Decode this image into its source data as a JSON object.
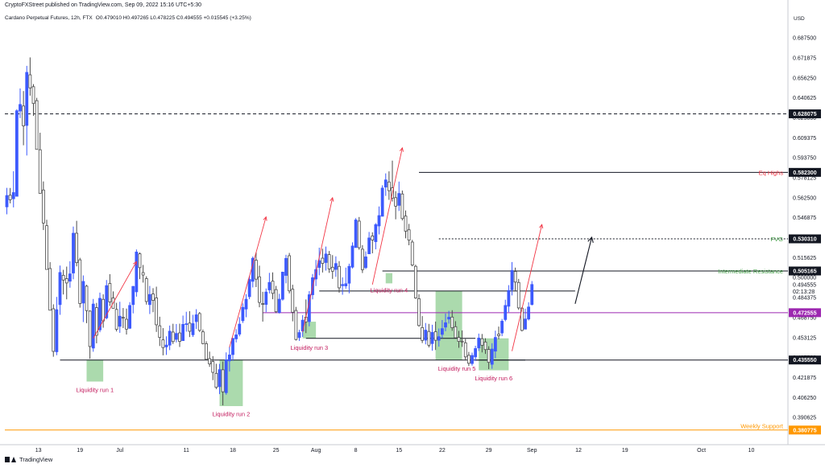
{
  "header": {
    "publisher": "CryptoFXStreet published on TradingView.com, Sep 09, 2022 15:16 UTC+5:30",
    "symbol": "Cardano Perpetual Futures, 12h, FTX",
    "ohlc": "O0.479010 H0.497265 L0.478225 C0.494555 +0.015545 (+3.25%)",
    "currency": "USD"
  },
  "footer": {
    "brand": "TradingView"
  },
  "colors": {
    "up": "#3d5afe",
    "down": "#4b4b4b",
    "box": "#66bb6a",
    "arrow": "#f23645",
    "purple": "#9c27b0",
    "orange": "#ff9800",
    "fvg_text": "#43a047",
    "eq_text": "#f23645"
  },
  "chart_data": {
    "type": "candlestick",
    "title": "Cardano Perpetual Futures, 12h, FTX",
    "ylim": [
      0.3775,
      0.6995
    ],
    "y_ticks": [
      "0.687500",
      "0.671875",
      "0.656250",
      "0.640625",
      "0.625000",
      "0.609375",
      "0.593750",
      "0.578125",
      "0.562500",
      "0.546875",
      "0.531250",
      "0.515625",
      "0.500000",
      "0.484375",
      "0.468750",
      "0.453125",
      "0.437500",
      "0.421875",
      "0.406250",
      "0.390625"
    ],
    "x_ticks": [
      {
        "label": "13",
        "i": 9.5
      },
      {
        "label": "19",
        "i": 22
      },
      {
        "label": "Jul",
        "i": 34
      },
      {
        "label": "11",
        "i": 54
      },
      {
        "label": "18",
        "i": 68
      },
      {
        "label": "25",
        "i": 81
      },
      {
        "label": "Aug",
        "i": 93
      },
      {
        "label": "8",
        "i": 105
      },
      {
        "label": "15",
        "i": 118
      },
      {
        "label": "22",
        "i": 131
      },
      {
        "label": "29",
        "i": 145
      },
      {
        "label": "Sep",
        "i": 158
      },
      {
        "label": "12",
        "i": 172
      },
      {
        "label": "19",
        "i": 186
      },
      {
        "label": "Oct",
        "i": 209
      },
      {
        "label": "10",
        "i": 224
      }
    ],
    "price_badges": [
      {
        "label": "0.628075",
        "value": 0.628075,
        "color": "#131722"
      },
      {
        "label": "0.582300",
        "value": 0.5823,
        "color": "#131722"
      },
      {
        "label": "0.530310",
        "value": 0.53031,
        "color": "#131722"
      },
      {
        "label": "0.505165",
        "value": 0.505165,
        "color": "#131722"
      },
      {
        "label": "0.472555",
        "value": 0.472555,
        "color": "#9c27b0"
      },
      {
        "label": "0.435550",
        "value": 0.43555,
        "color": "#131722"
      },
      {
        "label": "0.380775",
        "value": 0.380775,
        "color": "#ff9800"
      }
    ],
    "current_price": {
      "label": "0.494555",
      "countdown": "02:13:28",
      "value": 0.494555
    },
    "horizontal_lines": [
      {
        "value": 0.628075,
        "from": 0,
        "to": 1.0,
        "style": "dashed",
        "color": "#131722"
      },
      {
        "value": 0.5823,
        "from": 124,
        "to": 1.0,
        "style": "solid",
        "color": "#131722"
      },
      {
        "value": 0.53031,
        "from": 130,
        "to": 1.0,
        "style": "dotted",
        "color": "#131722"
      },
      {
        "value": 0.505165,
        "from": 113,
        "to": 1.0,
        "style": "solid",
        "color": "#131722"
      },
      {
        "value": 0.472555,
        "from": 77,
        "to": 1.0,
        "style": "solid",
        "color": "#9c27b0"
      },
      {
        "value": 0.43555,
        "from": 16,
        "to": 1.0,
        "style": "solid",
        "color": "#131722"
      },
      {
        "value": 0.380775,
        "from": 0,
        "to": 1.0,
        "style": "solid",
        "color": "#ff9800"
      },
      {
        "value": 0.4895,
        "from": 94,
        "to": 171,
        "style": "solid",
        "color": "#131722"
      },
      {
        "value": 0.4525,
        "from": 90,
        "to": 141,
        "style": "solid",
        "color": "#131722"
      },
      {
        "value": 0.4355,
        "from": 141,
        "to": 156,
        "style": "solid",
        "color": "#131722"
      }
    ],
    "line_labels": [
      {
        "text": "Eq Highs",
        "value": 0.5823,
        "color": "#f23645"
      },
      {
        "text": "FVG",
        "value": 0.53031,
        "color": "#43a047"
      },
      {
        "text": "Intermediate Resistance",
        "value": 0.505165,
        "color": "#43a047"
      },
      {
        "text": "Weekly Support",
        "value": 0.380775,
        "color": "#ff9800"
      }
    ],
    "liquidity_zones": [
      {
        "label": "Liquidity run 1",
        "i0": 24,
        "i1": 29,
        "top": 0.4358,
        "bottom": 0.4187,
        "label_value": 0.4125
      },
      {
        "label": "Liquidity run 2",
        "i0": 64,
        "i1": 71,
        "top": 0.4358,
        "bottom": 0.3995,
        "label_value": 0.3935
      },
      {
        "label": "Liquidity run 3",
        "i0": 89,
        "i1": 93,
        "top": 0.4655,
        "bottom": 0.4525,
        "label_value": 0.4455
      },
      {
        "label": "Liquidity run 4",
        "i0": 114,
        "i1": 116,
        "top": 0.5035,
        "bottom": 0.4955,
        "label_value": 0.4905
      },
      {
        "label": "Liquidity run 5",
        "i0": 129,
        "i1": 137,
        "top": 0.4895,
        "bottom": 0.4355,
        "label_value": 0.4292
      },
      {
        "label": "Liquidity run 6",
        "i0": 142,
        "i1": 151,
        "top": 0.4525,
        "bottom": 0.4275,
        "label_value": 0.4215
      }
    ],
    "run_arrows": [
      {
        "i0": 26,
        "v0": 0.4525,
        "i1": 39,
        "v1": 0.5125
      },
      {
        "i0": 67,
        "v0": 0.4455,
        "i1": 78,
        "v1": 0.5475
      },
      {
        "i0": 89,
        "v0": 0.4575,
        "i1": 98,
        "v1": 0.5625
      },
      {
        "i0": 110,
        "v0": 0.4945,
        "i1": 119,
        "v1": 0.6015
      },
      {
        "i0": 152,
        "v0": 0.4425,
        "i1": 161,
        "v1": 0.5415
      }
    ],
    "projection_arrow": {
      "i0": 171,
      "v0": 0.4795,
      "i1": 176,
      "v1": 0.5315
    },
    "candles": [
      [
        0.5553,
        0.5702,
        0.5495,
        0.5642
      ],
      [
        0.5644,
        0.5701,
        0.5581,
        0.5609
      ],
      [
        0.5617,
        0.5832,
        0.5549,
        0.5665
      ],
      [
        0.5636,
        0.6317,
        0.5641,
        0.6305
      ],
      [
        0.6303,
        0.6479,
        0.6247,
        0.6354
      ],
      [
        0.6342,
        0.6459,
        0.6035,
        0.6187
      ],
      [
        0.619,
        0.6656,
        0.5955,
        0.6605
      ],
      [
        0.6586,
        0.6722,
        0.6423,
        0.6484
      ],
      [
        0.6493,
        0.6513,
        0.6265,
        0.6362
      ],
      [
        0.6384,
        0.6406,
        0.6004,
        0.6003
      ],
      [
        0.6,
        0.6133,
        0.5659,
        0.5659
      ],
      [
        0.5685,
        0.5752,
        0.5372,
        0.5427
      ],
      [
        0.5406,
        0.5453,
        0.5064,
        0.5064
      ],
      [
        0.5071,
        0.5121,
        0.4745,
        0.4745
      ],
      [
        0.4756,
        0.4791,
        0.4381,
        0.4423
      ],
      [
        0.442,
        0.4849,
        0.4393,
        0.4749
      ],
      [
        0.4789,
        0.5094,
        0.4709,
        0.504
      ],
      [
        0.5018,
        0.5061,
        0.4868,
        0.4981
      ],
      [
        0.4992,
        0.5086,
        0.483,
        0.4958
      ],
      [
        0.4972,
        0.5128,
        0.4921,
        0.5029
      ],
      [
        0.5036,
        0.5399,
        0.4987,
        0.5347
      ],
      [
        0.5347,
        0.5444,
        0.5088,
        0.5117
      ],
      [
        0.5139,
        0.5155,
        0.4765,
        0.4797
      ],
      [
        0.4801,
        0.5017,
        0.4652,
        0.497
      ],
      [
        0.4933,
        0.4943,
        0.4644,
        0.4742
      ],
      [
        0.4738,
        0.4744,
        0.4365,
        0.4461
      ],
      [
        0.4449,
        0.4833,
        0.442,
        0.4793
      ],
      [
        0.4765,
        0.4802,
        0.4486,
        0.4549
      ],
      [
        0.4591,
        0.4883,
        0.4573,
        0.4838
      ],
      [
        0.483,
        0.4869,
        0.4608,
        0.4661
      ],
      [
        0.4685,
        0.4981,
        0.4674,
        0.4937
      ],
      [
        0.4954,
        0.5027,
        0.4778,
        0.481
      ],
      [
        0.4841,
        0.4892,
        0.4759,
        0.476
      ],
      [
        0.4751,
        0.4803,
        0.4579,
        0.4596
      ],
      [
        0.4619,
        0.4811,
        0.4568,
        0.4698
      ],
      [
        0.4689,
        0.4762,
        0.4605,
        0.4687
      ],
      [
        0.4674,
        0.4758,
        0.4555,
        0.4597
      ],
      [
        0.4604,
        0.4808,
        0.4598,
        0.4782
      ],
      [
        0.4789,
        0.4935,
        0.472,
        0.4931
      ],
      [
        0.4889,
        0.522,
        0.4851,
        0.52
      ],
      [
        0.5186,
        0.5196,
        0.4988,
        0.5078
      ],
      [
        0.5039,
        0.5099,
        0.4961,
        0.502
      ],
      [
        0.4992,
        0.501,
        0.4789,
        0.4813
      ],
      [
        0.4789,
        0.4935,
        0.4715,
        0.4868
      ],
      [
        0.4872,
        0.4917,
        0.4729,
        0.4822
      ],
      [
        0.4841,
        0.4929,
        0.4575,
        0.4631
      ],
      [
        0.4623,
        0.4694,
        0.4465,
        0.4532
      ],
      [
        0.4513,
        0.4605,
        0.4392,
        0.4453
      ],
      [
        0.4458,
        0.4541,
        0.4395,
        0.4472
      ],
      [
        0.4472,
        0.4625,
        0.4433,
        0.4581
      ],
      [
        0.4574,
        0.4639,
        0.4481,
        0.45
      ],
      [
        0.4517,
        0.4637,
        0.4493,
        0.4563
      ],
      [
        0.4567,
        0.464,
        0.4457,
        0.4501
      ],
      [
        0.4507,
        0.4703,
        0.4507,
        0.4634
      ],
      [
        0.4637,
        0.4733,
        0.4577,
        0.4639
      ],
      [
        0.4644,
        0.4737,
        0.4535,
        0.458
      ],
      [
        0.4553,
        0.4709,
        0.4536,
        0.464
      ],
      [
        0.4656,
        0.4753,
        0.4598,
        0.4709
      ],
      [
        0.4719,
        0.4731,
        0.4575,
        0.4587
      ],
      [
        0.4576,
        0.4594,
        0.4478,
        0.4484
      ],
      [
        0.4483,
        0.4502,
        0.4356,
        0.4361
      ],
      [
        0.4366,
        0.4421,
        0.4302,
        0.4325
      ],
      [
        0.4344,
        0.4386,
        0.4198,
        0.4259
      ],
      [
        0.4251,
        0.4326,
        0.4128,
        0.4142
      ],
      [
        0.4147,
        0.4325,
        0.4089,
        0.428
      ],
      [
        0.4279,
        0.4344,
        0.4001,
        0.4107
      ],
      [
        0.41,
        0.4415,
        0.4084,
        0.4357
      ],
      [
        0.4349,
        0.4461,
        0.4266,
        0.4395
      ],
      [
        0.4398,
        0.4529,
        0.4349,
        0.4524
      ],
      [
        0.4521,
        0.4597,
        0.4493,
        0.4552
      ],
      [
        0.4558,
        0.4691,
        0.4541,
        0.4636
      ],
      [
        0.4663,
        0.4798,
        0.4645,
        0.4767
      ],
      [
        0.4754,
        0.4871,
        0.469,
        0.4831
      ],
      [
        0.4851,
        0.5014,
        0.4831,
        0.4985
      ],
      [
        0.4971,
        0.5165,
        0.4923,
        0.5151
      ],
      [
        0.5136,
        0.5197,
        0.4926,
        0.4988
      ],
      [
        0.5006,
        0.5093,
        0.4768,
        0.4806
      ],
      [
        0.4797,
        0.4889,
        0.4656,
        0.4793
      ],
      [
        0.479,
        0.4915,
        0.473,
        0.4887
      ],
      [
        0.4904,
        0.5037,
        0.4876,
        0.4962
      ],
      [
        0.4972,
        0.5041,
        0.4831,
        0.4877
      ],
      [
        0.4906,
        0.4935,
        0.4723,
        0.4733
      ],
      [
        0.4727,
        0.4873,
        0.4719,
        0.4831
      ],
      [
        0.4831,
        0.5046,
        0.482,
        0.5043
      ],
      [
        0.5017,
        0.5178,
        0.4955,
        0.515
      ],
      [
        0.5171,
        0.5193,
        0.4876,
        0.4896
      ],
      [
        0.4909,
        0.4944,
        0.4658,
        0.4729
      ],
      [
        0.4743,
        0.4771,
        0.4508,
        0.4516
      ],
      [
        0.4531,
        0.4592,
        0.4505,
        0.457
      ],
      [
        0.4583,
        0.4706,
        0.4536,
        0.4667
      ],
      [
        0.4691,
        0.4829,
        0.4566,
        0.4654
      ],
      [
        0.4656,
        0.4895,
        0.4619,
        0.4866
      ],
      [
        0.4866,
        0.5028,
        0.483,
        0.4999
      ],
      [
        0.4989,
        0.5138,
        0.4934,
        0.5063
      ],
      [
        0.5079,
        0.5234,
        0.5018,
        0.5132
      ],
      [
        0.5152,
        0.5226,
        0.504,
        0.5111
      ],
      [
        0.5118,
        0.5243,
        0.5055,
        0.5185
      ],
      [
        0.518,
        0.5208,
        0.5037,
        0.5068
      ],
      [
        0.5081,
        0.5176,
        0.499,
        0.505
      ],
      [
        0.5064,
        0.5166,
        0.5006,
        0.511
      ],
      [
        0.5088,
        0.5129,
        0.4882,
        0.492
      ],
      [
        0.4937,
        0.5002,
        0.4866,
        0.4946
      ],
      [
        0.4935,
        0.5078,
        0.4913,
        0.4952
      ],
      [
        0.4956,
        0.5109,
        0.4877,
        0.5088
      ],
      [
        0.5082,
        0.5276,
        0.5071,
        0.5247
      ],
      [
        0.5235,
        0.5465,
        0.5237,
        0.5451
      ],
      [
        0.5442,
        0.5474,
        0.5218,
        0.5234
      ],
      [
        0.5222,
        0.5254,
        0.5036,
        0.5062
      ],
      [
        0.5078,
        0.5205,
        0.5067,
        0.5162
      ],
      [
        0.5186,
        0.5357,
        0.5187,
        0.531
      ],
      [
        0.5326,
        0.5354,
        0.519,
        0.5294
      ],
      [
        0.5281,
        0.5426,
        0.5221,
        0.5414
      ],
      [
        0.5404,
        0.5556,
        0.5338,
        0.5485
      ],
      [
        0.548,
        0.5722,
        0.5478,
        0.57
      ],
      [
        0.5708,
        0.5815,
        0.5639,
        0.5764
      ],
      [
        0.5748,
        0.5831,
        0.5608,
        0.568
      ],
      [
        0.5702,
        0.5915,
        0.5595,
        0.5622
      ],
      [
        0.5625,
        0.5676,
        0.5456,
        0.5559
      ],
      [
        0.5565,
        0.5751,
        0.5521,
        0.5658
      ],
      [
        0.5654,
        0.5681,
        0.5447,
        0.5462
      ],
      [
        0.5481,
        0.5525,
        0.5307,
        0.5363
      ],
      [
        0.5374,
        0.542,
        0.5253,
        0.5293
      ],
      [
        0.5278,
        0.5295,
        0.5088,
        0.5098
      ],
      [
        0.5088,
        0.5101,
        0.4834,
        0.4841
      ],
      [
        0.4835,
        0.487,
        0.4616,
        0.4625
      ],
      [
        0.4609,
        0.4699,
        0.4488,
        0.4509
      ],
      [
        0.4511,
        0.4645,
        0.4478,
        0.4589
      ],
      [
        0.4579,
        0.4638,
        0.4454,
        0.4471
      ],
      [
        0.4484,
        0.4631,
        0.4428,
        0.4571
      ],
      [
        0.4577,
        0.4656,
        0.4434,
        0.451
      ],
      [
        0.451,
        0.4602,
        0.446,
        0.4538
      ],
      [
        0.4556,
        0.4668,
        0.4526,
        0.4601
      ],
      [
        0.4613,
        0.4719,
        0.4581,
        0.4647
      ],
      [
        0.4676,
        0.474,
        0.464,
        0.469
      ],
      [
        0.4691,
        0.4745,
        0.4584,
        0.4608
      ],
      [
        0.4616,
        0.4659,
        0.4528,
        0.4529
      ],
      [
        0.4532,
        0.4583,
        0.4451,
        0.4501
      ],
      [
        0.4503,
        0.4587,
        0.4458,
        0.4498
      ],
      [
        0.449,
        0.452,
        0.4352,
        0.438
      ],
      [
        0.4392,
        0.4419,
        0.4308,
        0.433
      ],
      [
        0.4328,
        0.4413,
        0.4311,
        0.4391
      ],
      [
        0.438,
        0.4467,
        0.4348,
        0.4445
      ],
      [
        0.445,
        0.4562,
        0.4426,
        0.4527
      ],
      [
        0.4522,
        0.4559,
        0.4415,
        0.4471
      ],
      [
        0.4496,
        0.4526,
        0.4403,
        0.4437
      ],
      [
        0.4438,
        0.4463,
        0.4284,
        0.4337
      ],
      [
        0.4322,
        0.4487,
        0.4287,
        0.4441
      ],
      [
        0.4425,
        0.4585,
        0.437,
        0.4532
      ],
      [
        0.4557,
        0.4617,
        0.4518,
        0.4546
      ],
      [
        0.4567,
        0.4677,
        0.4542,
        0.4659
      ],
      [
        0.4672,
        0.4827,
        0.4658,
        0.4782
      ],
      [
        0.4776,
        0.4941,
        0.473,
        0.4899
      ],
      [
        0.4905,
        0.5122,
        0.4861,
        0.5056
      ],
      [
        0.5048,
        0.5078,
        0.4895,
        0.4965
      ],
      [
        0.4962,
        0.499,
        0.4748,
        0.4763
      ],
      [
        0.4761,
        0.477,
        0.4579,
        0.4587
      ],
      [
        0.4597,
        0.4757,
        0.4597,
        0.4676
      ],
      [
        0.4676,
        0.4807,
        0.4665,
        0.477
      ],
      [
        0.479,
        0.4973,
        0.4782,
        0.4946
      ]
    ]
  }
}
